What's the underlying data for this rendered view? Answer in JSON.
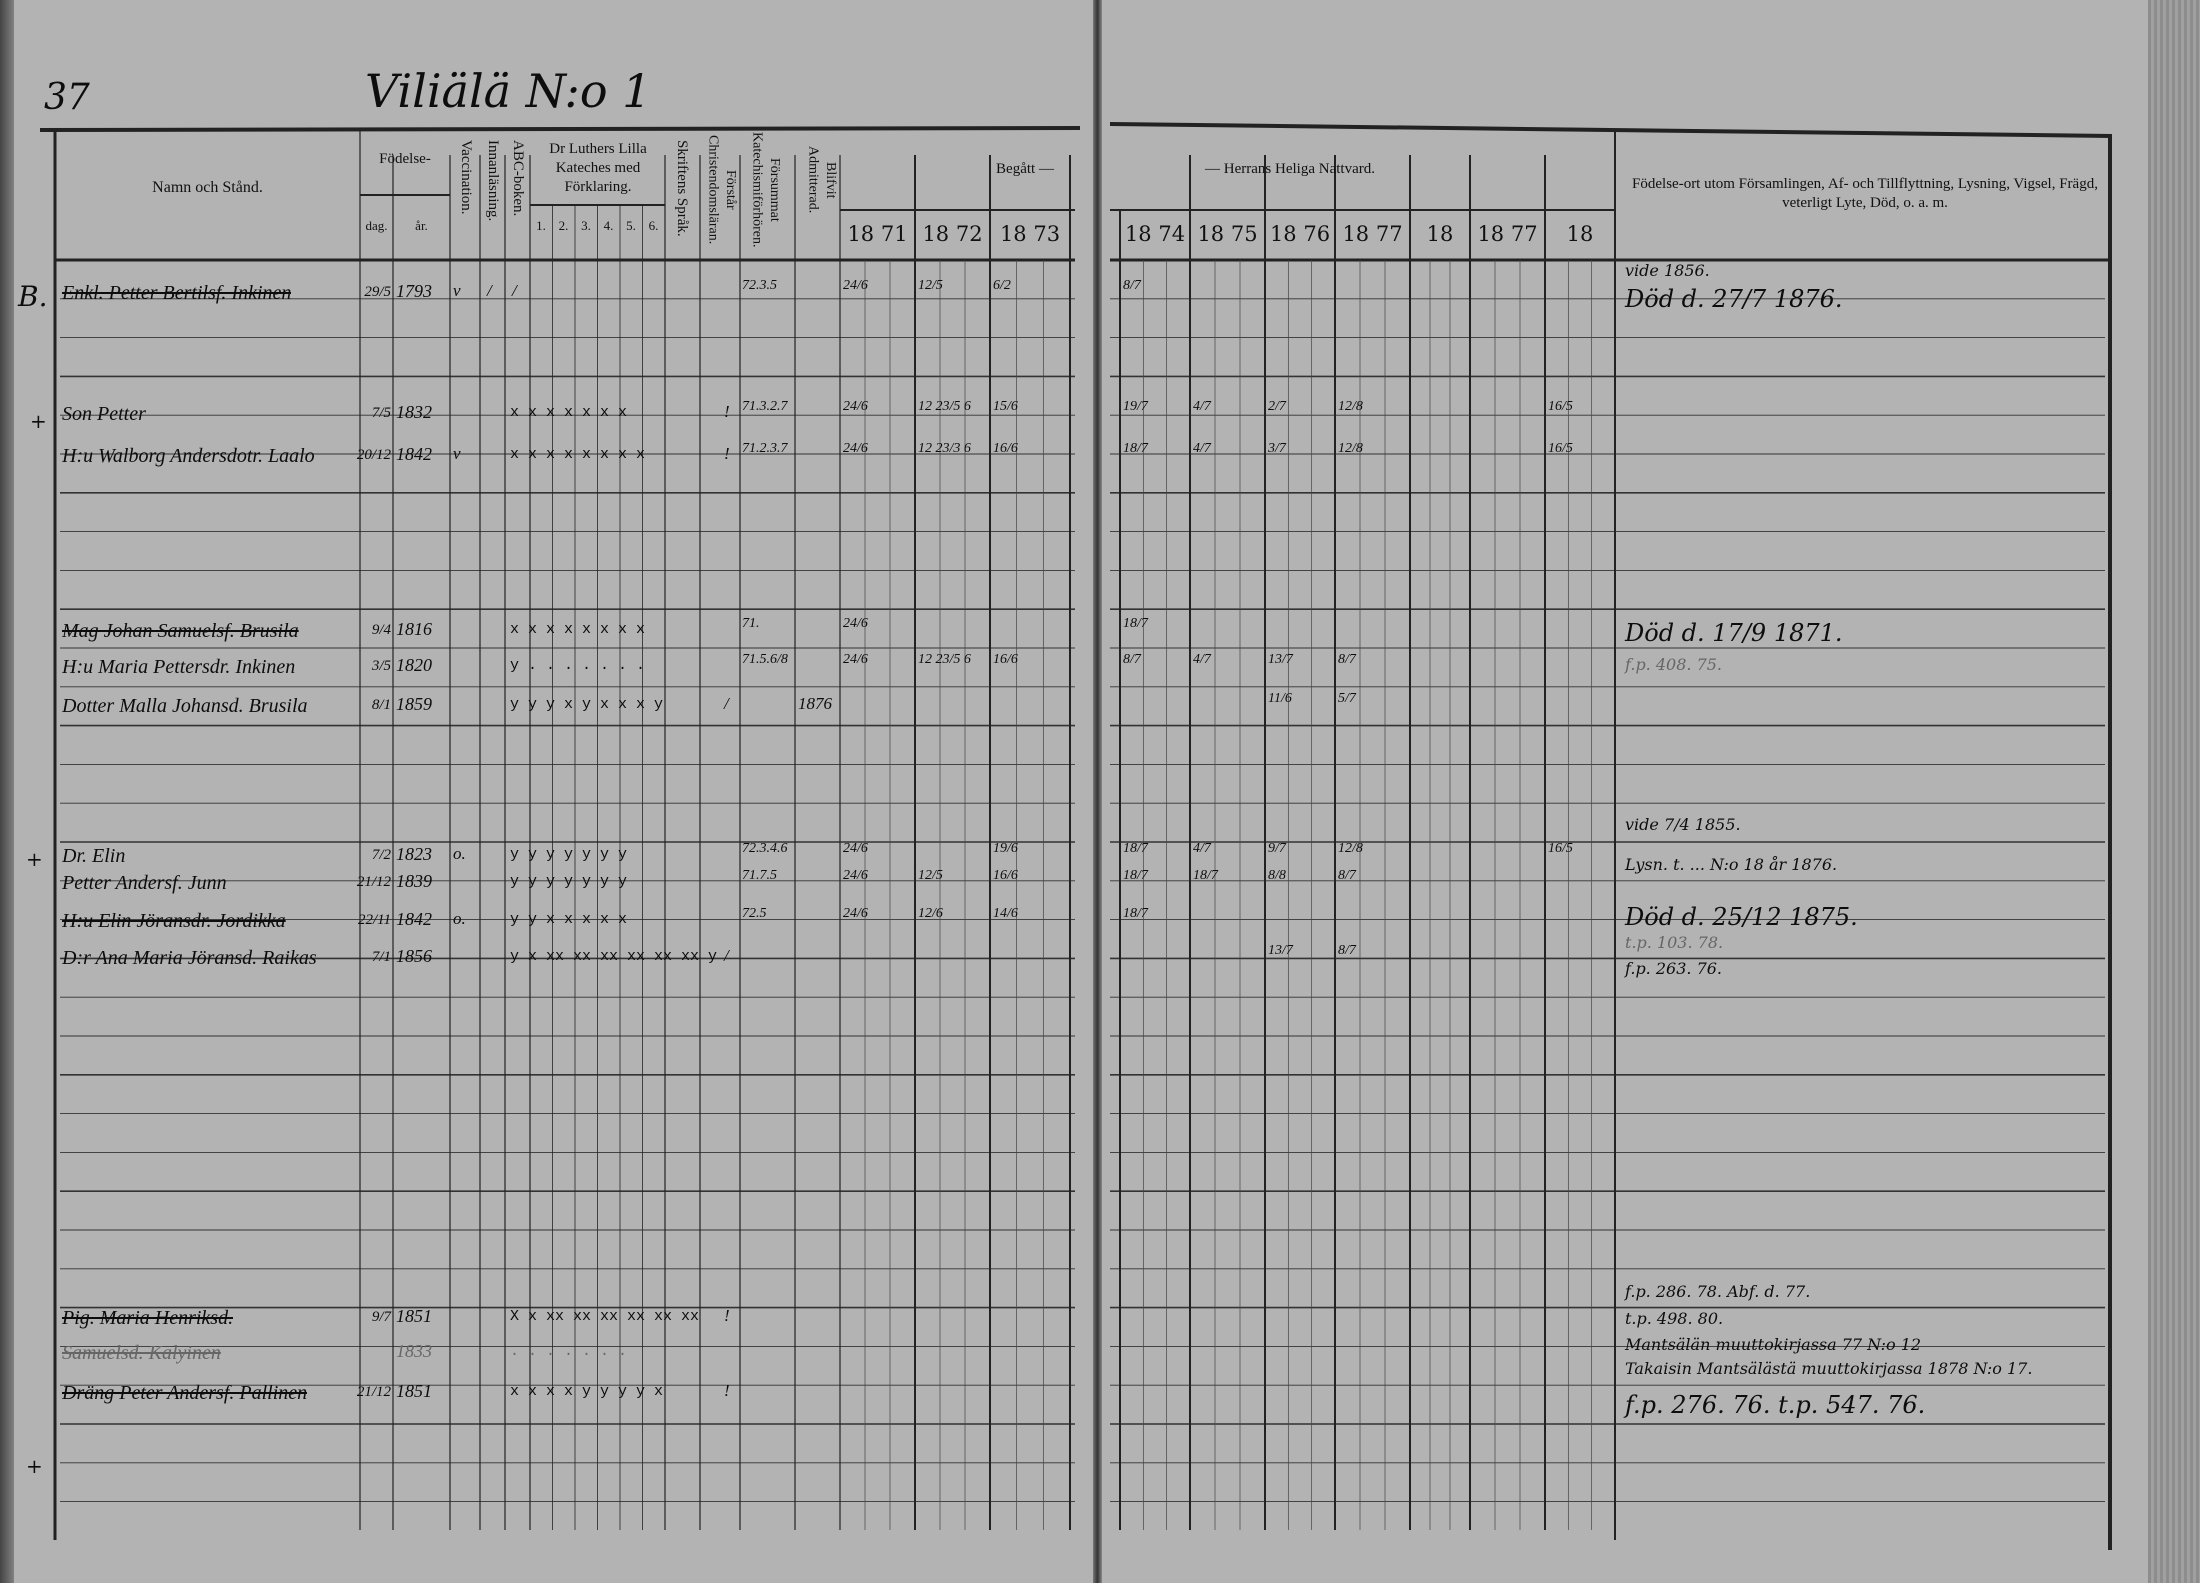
{
  "page": {
    "page_number": "37",
    "title": "Viliälä N:o 1"
  },
  "header": {
    "name_col": "Namn och Stånd.",
    "birth": "Födelse-",
    "birth_day": "dag.",
    "birth_year": "år.",
    "vaccination": "Vaccination.",
    "inmalning": "Innanläsning.",
    "abc": "ABC-boken.",
    "luther": "Dr Luthers Lilla Kateches med Förklaring.",
    "luther_parts": [
      "1.",
      "2.",
      "3.",
      "4.",
      "5.",
      "6."
    ],
    "skrift": "Skriftens Språk.",
    "forstar": "Förstår Christendomsläran.",
    "forsummat": "Försummat Katechismiförhören.",
    "blifvit": "Blifvit Admitterad.",
    "begatt": "Begått —",
    "nattvard": "— Herrans Heliga Nattvard.",
    "years": [
      "18 71",
      "18 72",
      "18 73",
      "18 74",
      "18 75",
      "18 76",
      "18 77",
      "18",
      "18 77",
      "18"
    ],
    "remarks": "Födelse-ort utom Församlingen, Af- och Tillflyttning, Lysning, Vigsel, Frägd, veterligt Lyte, Död, o. a. m."
  },
  "margin_notes": [
    "B.",
    "+",
    "+",
    "+"
  ],
  "entries": [
    {
      "name": "Enkl. Petter Bertilsf. Inkinen",
      "struck": true,
      "cells": {
        "dag": "29/5",
        "ar": "1793",
        "vacc": "v",
        "inm": "/",
        "abc": "/",
        "forsummat": "72.3.5",
        "y1871": "24/6",
        "y1872": "12/5",
        "y1873": "6/2",
        "y1874": "8/7"
      }
    },
    {
      "name": "Son Petter",
      "cells": {
        "dag": "7/5",
        "ar": "1832",
        "luther": "x x x x x x x",
        "forstar": "!",
        "forsummat": "71.3.2.7",
        "y1871": "24/6",
        "y1872": "12 23/5 6",
        "y1873": "15/6",
        "y1874": "19/7",
        "y1875": "4/7",
        "y1876": "2/7",
        "y1877": "12/8",
        "y18b": "16/5"
      }
    },
    {
      "name": "H:u Walborg Andersdotr. Laalo",
      "cells": {
        "dag": "20/12",
        "ar": "1842",
        "vacc": "v",
        "luther": "x x x x x x x x",
        "forstar": "!",
        "forsummat": "71.2.3.7",
        "y1871": "24/6",
        "y1872": "12 23/3 6",
        "y1873": "16/6",
        "y1874": "18/7",
        "y1875": "4/7",
        "y1876": "3/7",
        "y1877": "12/8",
        "y18b": "16/5"
      }
    },
    {
      "name": "Mag Johan Samuelsf. Brusila",
      "struck": true,
      "cells": {
        "dag": "9/4",
        "ar": "1816",
        "luther": "x x x x x x x x",
        "forsummat": "71.",
        "y1871": "24/6",
        "y1874": "18/7"
      }
    },
    {
      "name": "H:u Maria Pettersdr. Inkinen",
      "cells": {
        "dag": "3/5",
        "ar": "1820",
        "luther": "y . . . . . . .",
        "forsummat": "71.5.6/8",
        "y1871": "24/6",
        "y1872": "12 23/5 6",
        "y1873": "16/6",
        "y1874": "8/7",
        "y1875": "4/7",
        "y1876": "13/7",
        "y1877": "8/7"
      }
    },
    {
      "name": "Dotter Malla Johansd. Brusila",
      "cells": {
        "dag": "8/1",
        "ar": "1859",
        "luther": "y y y x y x x x y",
        "forstar": "/",
        "blifvit": "1876",
        "y1876": "11/6",
        "y1877": "5/7"
      }
    },
    {
      "name": "Dr. Elin",
      "cells": {
        "dag": "7/2",
        "ar": "1823",
        "vacc": "o.",
        "luther": "y y y y y y y",
        "forsummat": "72.3.4.6",
        "y1871": "24/6",
        "y1873": "19/6",
        "y1874": "18/7",
        "y1875": "4/7",
        "y1876": "9/7",
        "y1877": "12/8",
        "y18b": "16/5"
      }
    },
    {
      "name": "Petter Andersf. Junn",
      "cells": {
        "dag": "21/12",
        "ar": "1839",
        "luther": "y y y y y y y",
        "forsummat": "71.7.5",
        "y1871": "24/6",
        "y1872": "12/5",
        "y1873": "16/6",
        "y1874": "18/7",
        "y1875": "18/7",
        "y1876": "8/8",
        "y1877": "8/7"
      }
    },
    {
      "name": "H:u Elin Jöransdr. Jordikka",
      "struck": true,
      "cells": {
        "dag": "22/11",
        "ar": "1842",
        "vacc": "o.",
        "luther": "y y x x x x x",
        "forsummat": "72.5",
        "y1871": "24/6",
        "y1872": "12/6",
        "y1873": "14/6",
        "y1874": "18/7"
      }
    },
    {
      "name": "D:r Ana Maria Jöransd. Raikas",
      "cells": {
        "dag": "7/1",
        "ar": "1856",
        "luther": "y x xx xx xx xx xx xx y",
        "forstar": "/",
        "y1876": "13/7",
        "y1877": "8/7"
      }
    },
    {
      "name": "Pig. Maria Henriksd.",
      "struck": true,
      "cells": {
        "dag": "9/7",
        "ar": "1851",
        "luther": "X x xx xx xx xx xx xx",
        "forstar": "!"
      }
    },
    {
      "name": "Samuelsd. Kalyinen",
      "struck": true,
      "faint": true,
      "cells": {
        "ar": "1833",
        "luther": ". . . . . . ."
      }
    },
    {
      "name": "Dräng Peter Andersf. Pallinen",
      "struck": true,
      "cells": {
        "dag": "21/12",
        "ar": "1851",
        "luther": "x x x x y y y y x",
        "forstar": "!"
      }
    }
  ],
  "remarks": [
    "vide 1856.",
    "Död d. 27/7 1876.",
    "Död d. 17/9 1871.",
    "f.p. 408. 75.",
    "vide 7/4 1855.",
    "Lysn. t. ... N:o 18 år 1876.",
    "Död d. 25/12 1875.",
    "t.p. 103. 78.",
    "f.p. 263. 76.",
    "f.p. 286. 78.   Abf. d. 77.",
    "t.p. 498. 80.",
    "Mantsälän muuttokirjassa 77 N:o 12",
    "Takaisin Mantsälästä muuttokirjassa 1878 N:o 17.",
    "f.p. 276. 76.   t.p. 547. 76."
  ],
  "colors": {
    "paper": "#b3b3b3",
    "ink": "#0d0d0d",
    "rule": "#222222"
  }
}
